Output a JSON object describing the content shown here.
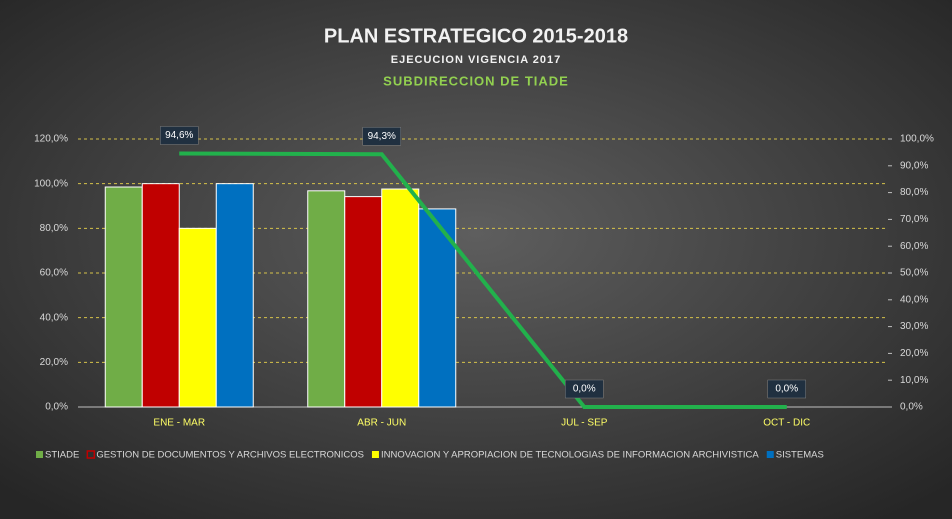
{
  "chart_data": {
    "type": "bar",
    "title": "PLAN ESTRATEGICO 2015-2018",
    "subtitle": "EJECUCION VIGENCIA 2017",
    "subheading": "SUBDIRECCION DE TIADE",
    "categories": [
      "ENE - MAR",
      "ABR - JUN",
      "JUL - SEP",
      "OCT - DIC"
    ],
    "series": [
      {
        "name": "STIADE",
        "color": "#70ad47",
        "values": [
          98.5,
          96.8,
          null,
          null
        ]
      },
      {
        "name": "GESTION DE DOCUMENTOS Y ARCHIVOS ELECTRONICOS",
        "color": "#c00000",
        "values": [
          100,
          94.2,
          null,
          null
        ]
      },
      {
        "name": "INNOVACION Y APROPIACION DE TECNOLOGIAS DE INFORMACION ARCHIVISTICA",
        "color": "#ffff00",
        "values": [
          80,
          97.6,
          null,
          null
        ]
      },
      {
        "name": "SISTEMAS",
        "color": "#0070c0",
        "values": [
          100,
          88.7,
          null,
          null
        ]
      },
      {
        "type": "line",
        "axis": "y2",
        "color": "#22b14c",
        "values": [
          94.6,
          94.3,
          0,
          0
        ],
        "value_labels": [
          "94,6%",
          "94,3%",
          "0,0%",
          "0,0%"
        ]
      }
    ],
    "ylim": [
      0,
      120
    ],
    "yticks": [
      {
        "value": 0,
        "label": "0,0%"
      },
      {
        "value": 20,
        "label": "20,0%"
      },
      {
        "value": 40,
        "label": "40,0%"
      },
      {
        "value": 60,
        "label": "60,0%"
      },
      {
        "value": 80,
        "label": "80,0%"
      },
      {
        "value": 100,
        "label": "100,0%"
      },
      {
        "value": 120,
        "label": "120,0%"
      }
    ],
    "y2lim": [
      0,
      100
    ],
    "y2ticks": [
      {
        "value": 0,
        "label": "0,0%"
      },
      {
        "value": 10,
        "label": "10,0%"
      },
      {
        "value": 20,
        "label": "20,0%"
      },
      {
        "value": 30,
        "label": "30,0%"
      },
      {
        "value": 40,
        "label": "40,0%"
      },
      {
        "value": 50,
        "label": "50,0%"
      },
      {
        "value": 60,
        "label": "60,0%"
      },
      {
        "value": 70,
        "label": "70,0%"
      },
      {
        "value": 80,
        "label": "80,0%"
      },
      {
        "value": 90,
        "label": "90,0%"
      },
      {
        "value": 100,
        "label": "100,0%"
      }
    ],
    "grid": true,
    "legend": "bottom"
  }
}
